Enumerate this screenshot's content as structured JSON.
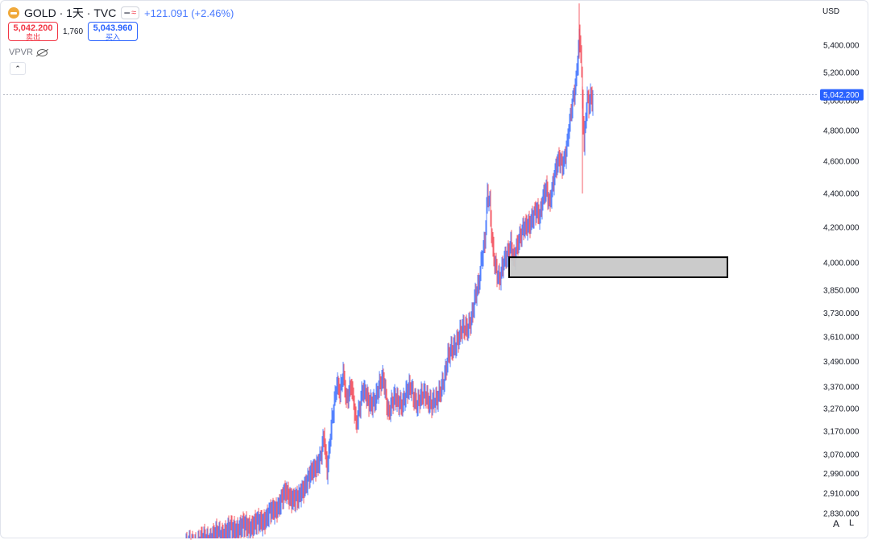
{
  "header": {
    "symbol_title": "GOLD · 1天 · TVC",
    "change": "+121.091 (+2.46%)",
    "toggle_icons": [
      "minus-icon",
      "wave-icon"
    ]
  },
  "quote": {
    "sell_price": "5,042.200",
    "sell_label": "卖出",
    "spread": "1,760",
    "buy_price": "5,043.960",
    "buy_label": "买入"
  },
  "indicator": {
    "name": "VPVR"
  },
  "price_scale": {
    "currency": "USD",
    "mode_auto": "A",
    "mode_log": "L",
    "current_price_label": "5,042.200"
  },
  "chart_data": {
    "type": "candlestick",
    "title": "",
    "scale": "log",
    "ylim": [
      2770,
      5800
    ],
    "y_ticks": [
      {
        "value": 5400,
        "label": "5,400.000"
      },
      {
        "value": 5200,
        "label": "5,200.000"
      },
      {
        "value": 5000,
        "label": "5,000.000"
      },
      {
        "value": 4800,
        "label": "4,800.000"
      },
      {
        "value": 4600,
        "label": "4,600.000"
      },
      {
        "value": 4400,
        "label": "4,400.000"
      },
      {
        "value": 4200,
        "label": "4,200.000"
      },
      {
        "value": 4000,
        "label": "4,000.000"
      },
      {
        "value": 3850,
        "label": "3,850.000"
      },
      {
        "value": 3730,
        "label": "3,730.000"
      },
      {
        "value": 3610,
        "label": "3,610.000"
      },
      {
        "value": 3490,
        "label": "3,490.000"
      },
      {
        "value": 3370,
        "label": "3,370.000"
      },
      {
        "value": 3270,
        "label": "3,270.000"
      },
      {
        "value": 3170,
        "label": "3,170.000"
      },
      {
        "value": 3070,
        "label": "3,070.000"
      },
      {
        "value": 2990,
        "label": "2,990.000"
      },
      {
        "value": 2910,
        "label": "2,910.000"
      },
      {
        "value": 2830,
        "label": "2,830.000"
      }
    ],
    "current_price": 5042.2,
    "colors": {
      "up": "#2962ff",
      "down": "#f23645",
      "zone_fill": "#c8c8c8",
      "zone_stroke": "#000000"
    },
    "zone": {
      "top": 4030,
      "bottom": 3920
    },
    "path_points": [
      [
        0,
        2700
      ],
      [
        60,
        2770
      ],
      [
        90,
        2790
      ],
      [
        110,
        2840
      ],
      [
        125,
        2910
      ],
      [
        130,
        2900
      ],
      [
        140,
        2880
      ],
      [
        150,
        2960
      ],
      [
        160,
        3000
      ],
      [
        168,
        3070
      ],
      [
        172,
        3140
      ],
      [
        176,
        2990
      ],
      [
        182,
        3230
      ],
      [
        188,
        3380
      ],
      [
        192,
        3330
      ],
      [
        196,
        3440
      ],
      [
        200,
        3320
      ],
      [
        206,
        3370
      ],
      [
        212,
        3200
      ],
      [
        220,
        3360
      ],
      [
        228,
        3290
      ],
      [
        236,
        3320
      ],
      [
        246,
        3410
      ],
      [
        252,
        3260
      ],
      [
        260,
        3310
      ],
      [
        270,
        3300
      ],
      [
        280,
        3370
      ],
      [
        288,
        3290
      ],
      [
        298,
        3340
      ],
      [
        306,
        3290
      ],
      [
        312,
        3300
      ],
      [
        318,
        3380
      ],
      [
        322,
        3420
      ],
      [
        326,
        3500
      ],
      [
        332,
        3560
      ],
      [
        338,
        3600
      ],
      [
        344,
        3640
      ],
      [
        350,
        3660
      ],
      [
        356,
        3720
      ],
      [
        360,
        3810
      ],
      [
        364,
        3870
      ],
      [
        368,
        4040
      ],
      [
        372,
        4140
      ],
      [
        375,
        4390
      ],
      [
        378,
        4320
      ],
      [
        381,
        4100
      ],
      [
        384,
        4010
      ],
      [
        387,
        3960
      ],
      [
        390,
        3910
      ],
      [
        393,
        3950
      ],
      [
        396,
        4000
      ],
      [
        400,
        4050
      ],
      [
        404,
        4120
      ],
      [
        408,
        4010
      ],
      [
        412,
        4080
      ],
      [
        416,
        4150
      ],
      [
        420,
        4220
      ],
      [
        424,
        4210
      ],
      [
        428,
        4200
      ],
      [
        432,
        4260
      ],
      [
        436,
        4320
      ],
      [
        440,
        4270
      ],
      [
        444,
        4360
      ],
      [
        448,
        4420
      ],
      [
        452,
        4350
      ],
      [
        456,
        4460
      ],
      [
        460,
        4550
      ],
      [
        464,
        4600
      ],
      [
        468,
        4580
      ],
      [
        472,
        4660
      ],
      [
        476,
        4800
      ],
      [
        480,
        4950
      ],
      [
        483,
        5050
      ],
      [
        485,
        5150
      ],
      [
        487,
        5300
      ],
      [
        489,
        5480
      ],
      [
        491,
        5380
      ],
      [
        493,
        4990
      ],
      [
        495,
        4700
      ],
      [
        497,
        4850
      ],
      [
        499,
        5020
      ],
      [
        501,
        4960
      ],
      [
        503,
        5060
      ],
      [
        505,
        5010
      ],
      [
        506,
        5042
      ]
    ]
  }
}
